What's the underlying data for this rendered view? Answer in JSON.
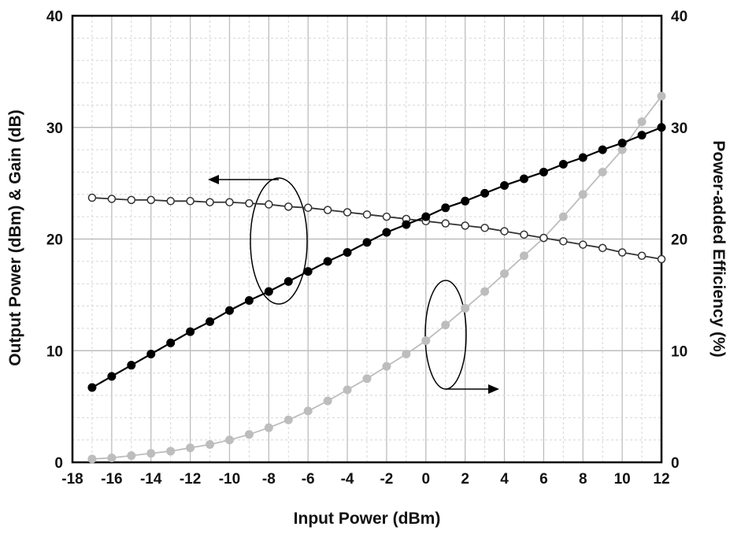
{
  "chart_data": {
    "type": "line",
    "xlabel": "Input Power (dBm)",
    "ylabel_left": "Output Power (dBm) & Gain (dB)",
    "ylabel_right": "Power-added Efficiency (%)",
    "xlim": [
      -18,
      12
    ],
    "ylim_left": [
      0,
      40
    ],
    "ylim_right": [
      0,
      40
    ],
    "x_ticks": [
      -18,
      -16,
      -14,
      -12,
      -10,
      -8,
      -6,
      -4,
      -2,
      0,
      2,
      4,
      6,
      8,
      10,
      12
    ],
    "y_ticks_left": [
      0,
      10,
      20,
      30,
      40
    ],
    "y_ticks_right": [
      0,
      10,
      20,
      30,
      40
    ],
    "grid": true,
    "x": [
      -17,
      -16,
      -15,
      -14,
      -13,
      -12,
      -11,
      -10,
      -9,
      -8,
      -7,
      -6,
      -5,
      -4,
      -3,
      -2,
      -1,
      0,
      1,
      2,
      3,
      4,
      5,
      6,
      7,
      8,
      9,
      10,
      11,
      12
    ],
    "series": [
      {
        "axis": "left",
        "marker": "filled",
        "color": "#000000",
        "values": [
          6.7,
          7.7,
          8.7,
          9.7,
          10.7,
          11.7,
          12.6,
          13.6,
          14.5,
          15.3,
          16.2,
          17.1,
          18.0,
          18.8,
          19.7,
          20.6,
          21.3,
          22.0,
          22.8,
          23.4,
          24.1,
          24.8,
          25.4,
          26.0,
          26.7,
          27.3,
          28.0,
          28.6,
          29.3,
          30.0
        ]
      },
      {
        "axis": "left",
        "marker": "open",
        "color": "#333333",
        "values": [
          23.7,
          23.6,
          23.5,
          23.5,
          23.4,
          23.4,
          23.3,
          23.3,
          23.2,
          23.1,
          22.9,
          22.8,
          22.6,
          22.4,
          22.2,
          22.0,
          21.8,
          21.6,
          21.4,
          21.2,
          21.0,
          20.7,
          20.4,
          20.1,
          19.8,
          19.5,
          19.2,
          18.8,
          18.5,
          18.2
        ]
      },
      {
        "axis": "right",
        "marker": "filled",
        "color": "#bdbdbd",
        "values": [
          0.3,
          0.4,
          0.6,
          0.8,
          1.0,
          1.3,
          1.6,
          2.0,
          2.5,
          3.1,
          3.8,
          4.6,
          5.5,
          6.5,
          7.5,
          8.6,
          9.7,
          10.9,
          12.3,
          13.8,
          15.3,
          16.9,
          18.5,
          20.1,
          22.0,
          24.0,
          26.0,
          28.0,
          30.5,
          32.8
        ]
      }
    ]
  }
}
